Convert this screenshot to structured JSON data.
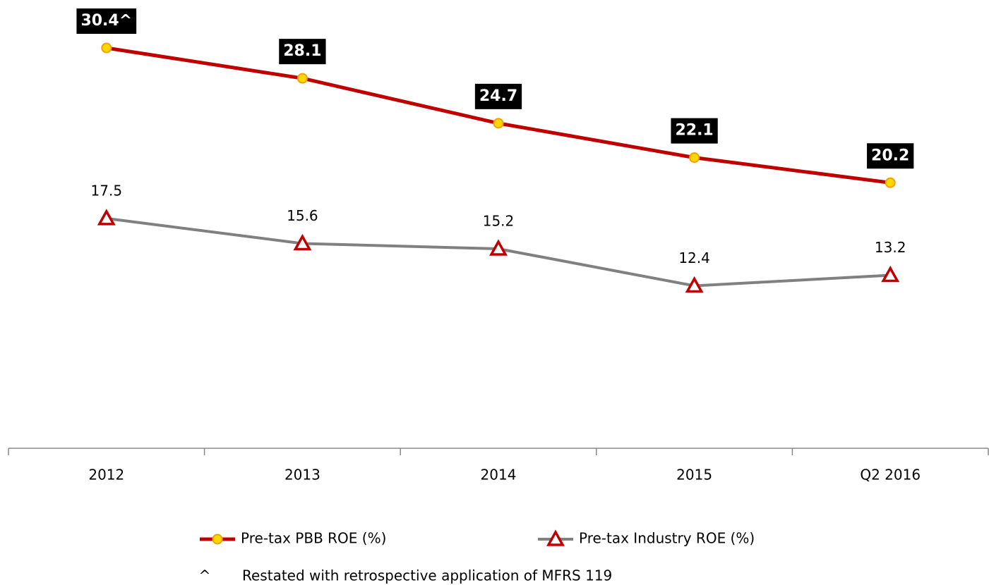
{
  "chart_data": {
    "type": "line",
    "categories": [
      "2012",
      "2013",
      "2014",
      "2015",
      "Q2 2016"
    ],
    "series": [
      {
        "name": "Pre-tax PBB ROE (%)",
        "color": "#c00000",
        "marker": "circle",
        "marker_color": "#ffd700",
        "values": [
          30.4,
          28.1,
          24.7,
          22.1,
          20.2
        ],
        "value_labels": [
          "30.4^",
          "28.1",
          "24.7",
          "22.1",
          "20.2"
        ]
      },
      {
        "name": "Pre-tax Industry ROE (%)",
        "color": "#808080",
        "marker": "triangle",
        "marker_color": "#c00000",
        "values": [
          17.5,
          15.6,
          15.2,
          12.4,
          13.2
        ]
      }
    ],
    "ylim": [
      0,
      32
    ],
    "legend": "bottom",
    "footnote": {
      "marker": "^",
      "text": "Restated with retrospective application of MFRS 119"
    }
  }
}
